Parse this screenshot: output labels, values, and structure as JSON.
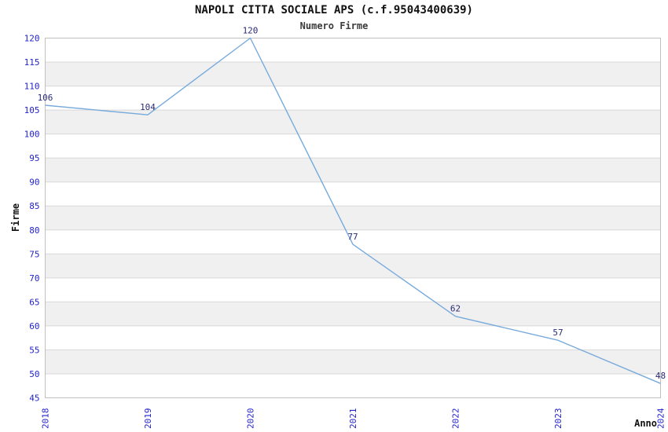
{
  "header": {
    "title": "NAPOLI CITTA SOCIALE APS (c.f.95043400639)",
    "subtitle": "Numero Firme"
  },
  "chart_data": {
    "type": "line",
    "title": "NAPOLI CITTA SOCIALE APS (c.f.95043400639)",
    "subtitle": "Numero Firme",
    "categories": [
      "2018",
      "2019",
      "2020",
      "2021",
      "2022",
      "2023",
      "2024"
    ],
    "values": [
      106,
      104,
      120,
      77,
      62,
      57,
      48
    ],
    "data_labels": [
      "106",
      "104",
      "120",
      "77",
      "62",
      "57",
      "48"
    ],
    "xlabel": "Anno",
    "ylabel": "Firme",
    "ylim": [
      45,
      120
    ],
    "ytick_step": 5,
    "yticks": [
      45,
      50,
      55,
      60,
      65,
      70,
      75,
      80,
      85,
      90,
      95,
      100,
      105,
      110,
      115,
      120
    ],
    "legend": "none",
    "grid": "horizontal",
    "background_bands": true,
    "colors": {
      "line": "#78aadc",
      "tick_label": "#2323cb",
      "data_label": "#2b2b78",
      "band": "#f0f0f0",
      "gridline": "#d8d8d8",
      "border": "#c0c0c0",
      "title": "#111111",
      "subtitle": "#3a3a3a",
      "axis_title": "#111111",
      "background": "#ffffff"
    }
  }
}
